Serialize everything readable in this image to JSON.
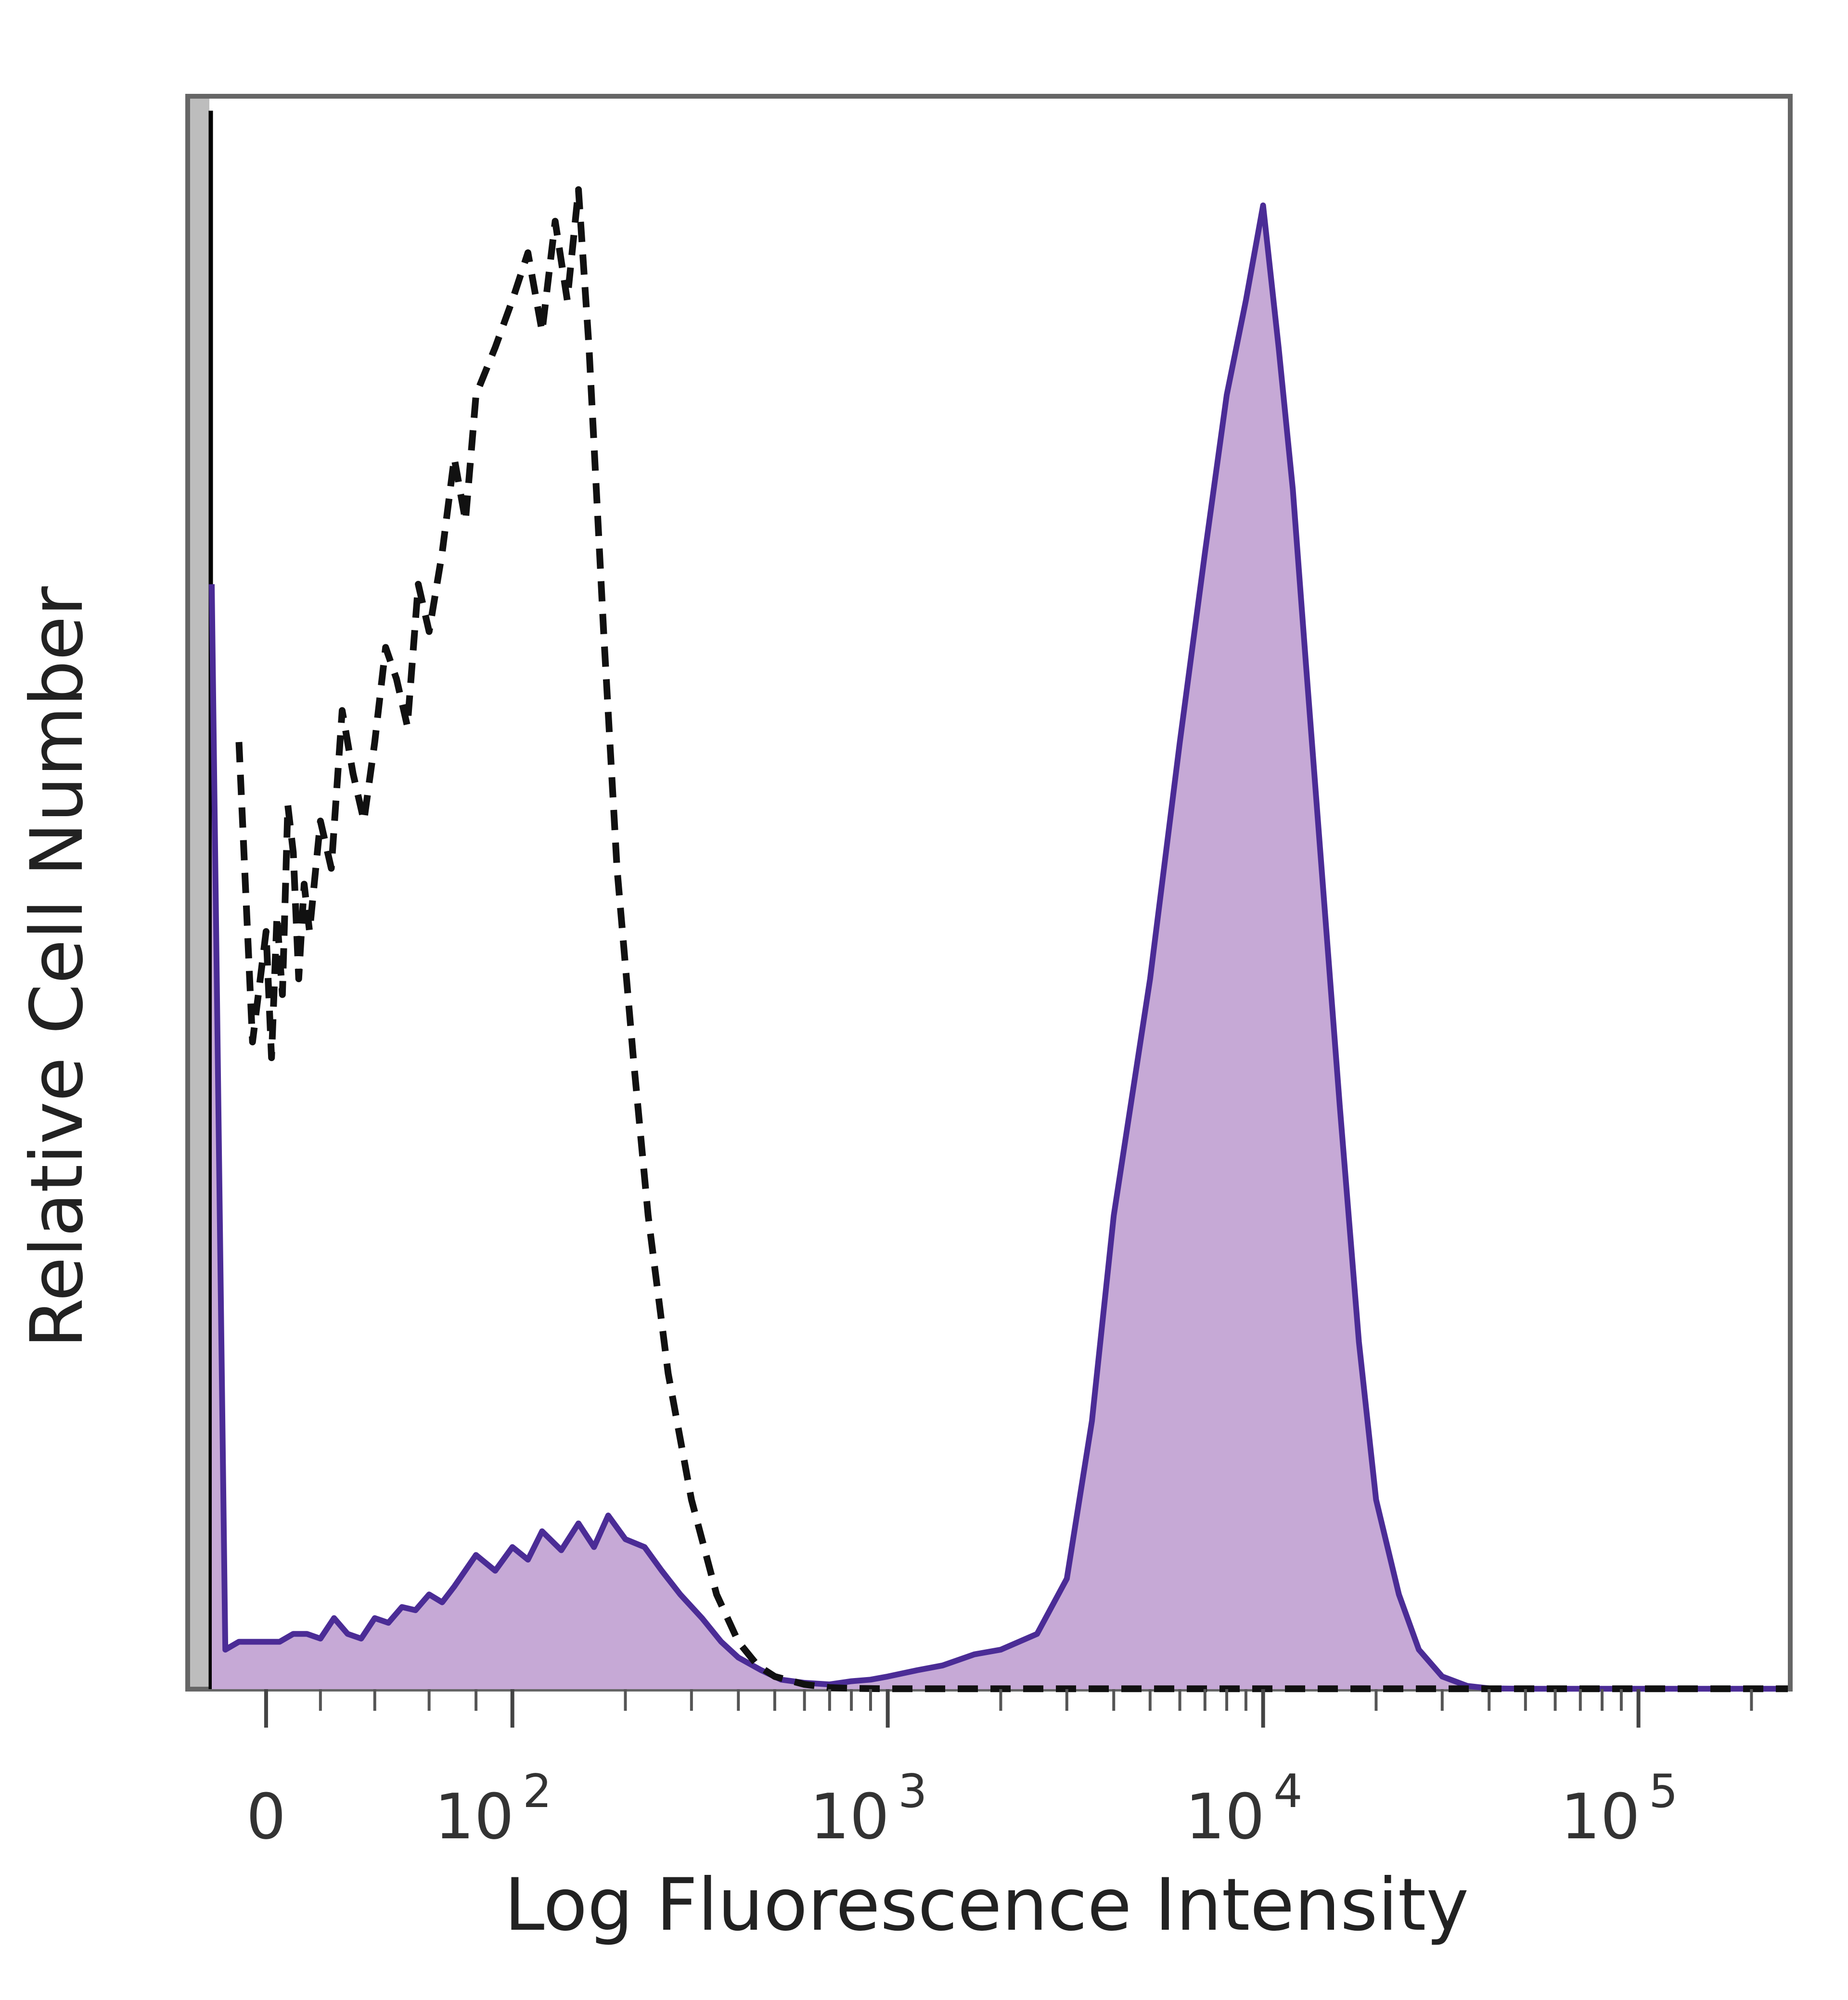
{
  "chart_data": {
    "type": "area",
    "xlabel": "Log Fluorescence Intensity",
    "ylabel": "Relative Cell Number",
    "x_scale": "biexponential",
    "xlim": [
      -20,
      250000
    ],
    "ylim": [
      0,
      100
    ],
    "x_ticks": [
      {
        "value": 0,
        "base": "0",
        "exp": ""
      },
      {
        "value": 100,
        "base": "10",
        "exp": "2"
      },
      {
        "value": 1000,
        "base": "10",
        "exp": "3"
      },
      {
        "value": 10000,
        "base": "10",
        "exp": "4"
      },
      {
        "value": 100000,
        "base": "10",
        "exp": "5"
      }
    ],
    "grid": false,
    "series": [
      {
        "style": "filled",
        "color": "#4b2c96",
        "fill": "#c6a9d6",
        "x": [
          -20,
          -15,
          -10,
          0,
          5,
          10,
          15,
          20,
          25,
          30,
          35,
          40,
          45,
          50,
          55,
          60,
          65,
          70,
          80,
          90,
          100,
          110,
          120,
          135,
          150,
          165,
          180,
          200,
          225,
          250,
          280,
          320,
          360,
          400,
          460,
          520,
          600,
          700,
          800,
          900,
          1000,
          1200,
          1400,
          1700,
          2000,
          2500,
          3000,
          3500,
          4000,
          5000,
          6000,
          7000,
          8000,
          9000,
          10000,
          11000,
          12000,
          13000,
          14000,
          16000,
          18000,
          20000,
          23000,
          26000,
          30000,
          35000,
          40000,
          50000,
          100000,
          200000,
          250000
        ],
        "y": [
          70,
          2.5,
          3.0,
          3.0,
          3.0,
          3.5,
          3.5,
          3.2,
          4.5,
          3.5,
          3.2,
          4.5,
          4.2,
          5.2,
          5.0,
          6.0,
          5.5,
          6.5,
          8.5,
          7.5,
          9.0,
          8.2,
          10.0,
          8.8,
          10.5,
          9.0,
          11.0,
          9.5,
          9.0,
          7.5,
          6.0,
          4.5,
          3.0,
          2.0,
          1.2,
          0.6,
          0.4,
          0.3,
          0.5,
          0.6,
          0.8,
          1.2,
          1.5,
          2.2,
          2.5,
          3.5,
          7.0,
          17.0,
          30.0,
          45.0,
          60.0,
          72.0,
          82.0,
          88.0,
          94.0,
          85.0,
          76.0,
          65.0,
          55.0,
          37.0,
          22.0,
          12.0,
          6.0,
          2.5,
          0.8,
          0.2,
          0.05,
          0.02,
          0.02,
          0.02,
          0.02
        ]
      },
      {
        "style": "dashed",
        "color": "#111111",
        "x": [
          -10,
          -5,
          0,
          2,
          4,
          6,
          8,
          10,
          12,
          14,
          16,
          20,
          24,
          28,
          32,
          36,
          40,
          44,
          48,
          52,
          56,
          60,
          65,
          70,
          75,
          80,
          90,
          100,
          110,
          120,
          130,
          140,
          150,
          160,
          175,
          190,
          210,
          230,
          260,
          300,
          350,
          400,
          450,
          500,
          600,
          700,
          800,
          1000,
          2000,
          250000
        ],
        "y": [
          60,
          41,
          48,
          40,
          49,
          44,
          56,
          53,
          45,
          51,
          48,
          55,
          52,
          62,
          58,
          55,
          60,
          66,
          64,
          61,
          70,
          67,
          72,
          78,
          74,
          82,
          85,
          88,
          91,
          86,
          93,
          88,
          95,
          85,
          67,
          52,
          40,
          30,
          20,
          12,
          6,
          3,
          1.5,
          0.8,
          0.3,
          0.1,
          0.05,
          0.02,
          0.02,
          0.02
        ]
      }
    ]
  }
}
